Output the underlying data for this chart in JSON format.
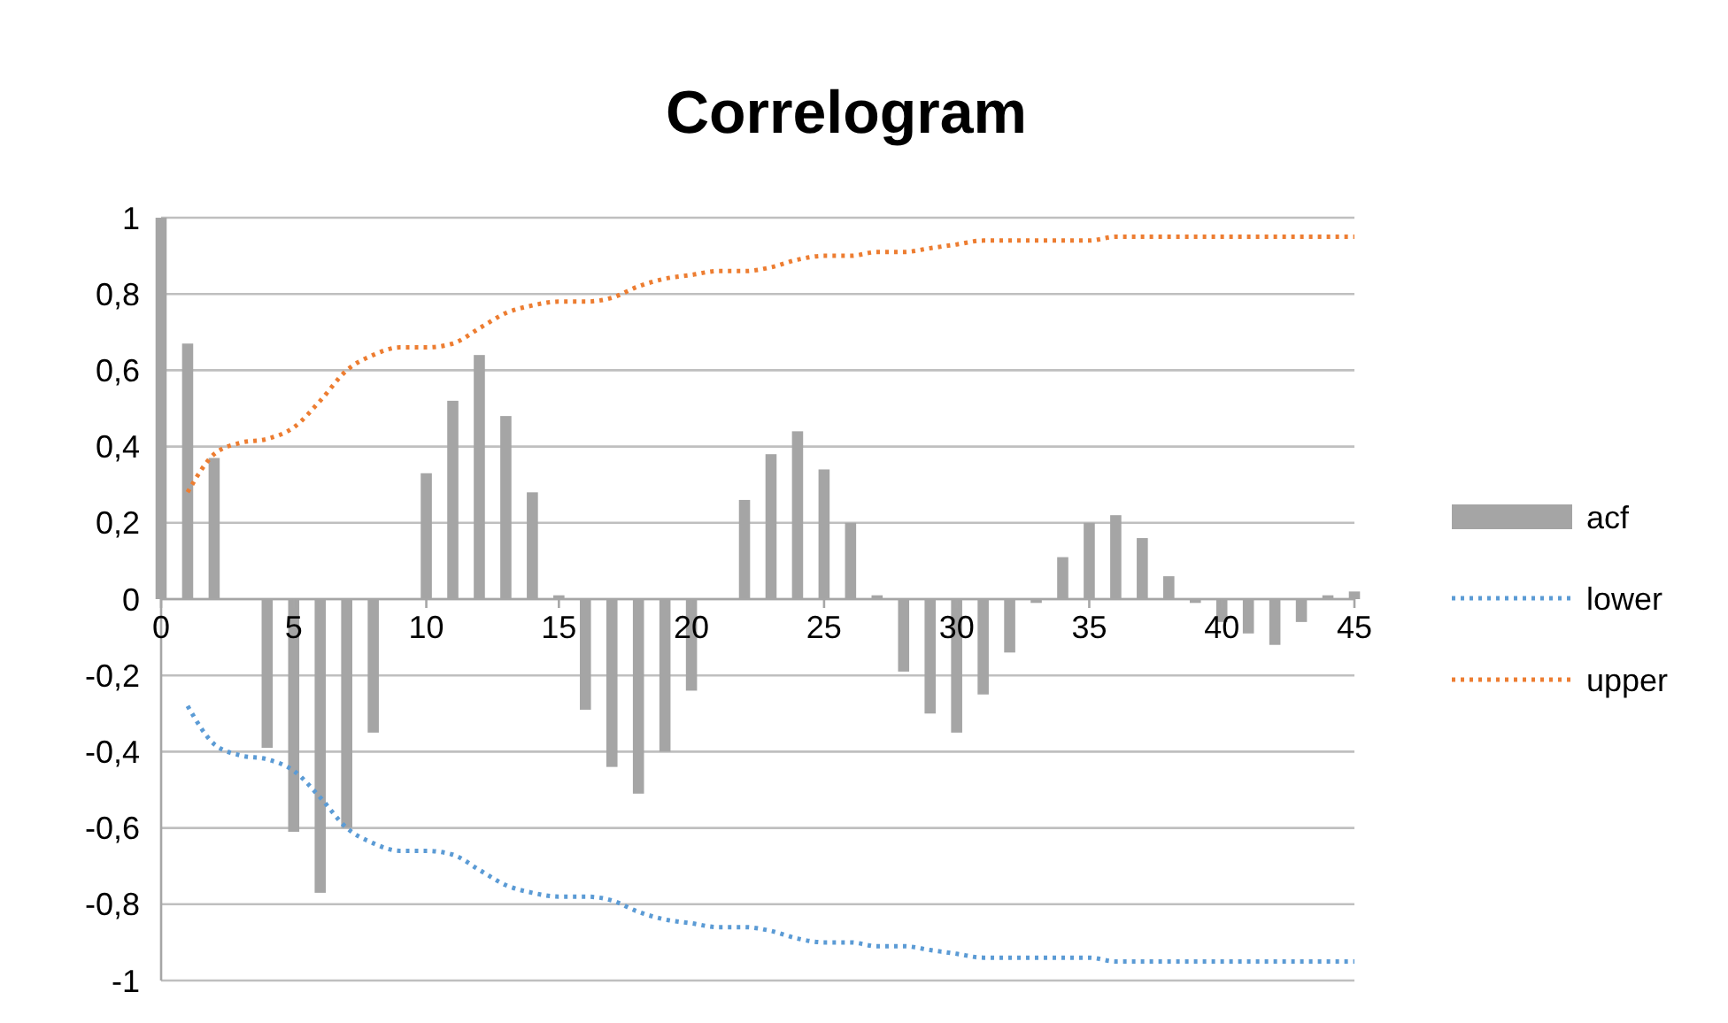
{
  "chart_data": {
    "type": "bar",
    "title": "Correlogram",
    "x": [
      0,
      1,
      2,
      3,
      4,
      5,
      6,
      7,
      8,
      9,
      10,
      11,
      12,
      13,
      14,
      15,
      16,
      17,
      18,
      19,
      20,
      21,
      22,
      23,
      24,
      25,
      26,
      27,
      28,
      29,
      30,
      31,
      32,
      33,
      34,
      35,
      36,
      37,
      38,
      39,
      40,
      41,
      42,
      43,
      44,
      45
    ],
    "series": [
      {
        "name": "acf",
        "color": "#a5a5a5",
        "values": [
          1,
          0.67,
          0.37,
          0,
          -0.39,
          -0.61,
          -0.77,
          -0.6,
          -0.35,
          0,
          0.33,
          0.52,
          0.64,
          0.48,
          0.28,
          0.01,
          -0.29,
          -0.44,
          -0.51,
          -0.4,
          -0.24,
          0,
          0.26,
          0.38,
          0.44,
          0.34,
          0.2,
          0.01,
          -0.19,
          -0.3,
          -0.35,
          -0.25,
          -0.14,
          -0.01,
          0.11,
          0.2,
          0.22,
          0.16,
          0.06,
          -0.01,
          -0.06,
          -0.09,
          -0.12,
          -0.06,
          0.01,
          0.02
        ]
      },
      {
        "name": "lower",
        "type": "line",
        "line_style": "dotted",
        "color": "#5b9bd5",
        "x": [
          1,
          2,
          3,
          4,
          5,
          6,
          7,
          8,
          9,
          10,
          11,
          12,
          13,
          14,
          15,
          16,
          17,
          18,
          19,
          20,
          21,
          22,
          23,
          24,
          25,
          26,
          27,
          28,
          29,
          30,
          31,
          32,
          33,
          34,
          35,
          36,
          37,
          38,
          39,
          40,
          41,
          42,
          43,
          44,
          45
        ],
        "values": [
          -0.28,
          -0.38,
          -0.41,
          -0.42,
          -0.45,
          -0.52,
          -0.6,
          -0.64,
          -0.66,
          -0.66,
          -0.67,
          -0.71,
          -0.75,
          -0.77,
          -0.78,
          -0.78,
          -0.79,
          -0.82,
          -0.84,
          -0.85,
          -0.86,
          -0.86,
          -0.87,
          -0.89,
          -0.9,
          -0.9,
          -0.91,
          -0.91,
          -0.92,
          -0.93,
          -0.94,
          -0.94,
          -0.94,
          -0.94,
          -0.94,
          -0.95,
          -0.95,
          -0.95,
          -0.95,
          -0.95,
          -0.95,
          -0.95,
          -0.95,
          -0.95,
          -0.95
        ]
      },
      {
        "name": "upper",
        "type": "line",
        "line_style": "dotted",
        "color": "#ed7d31",
        "x": [
          1,
          2,
          3,
          4,
          5,
          6,
          7,
          8,
          9,
          10,
          11,
          12,
          13,
          14,
          15,
          16,
          17,
          18,
          19,
          20,
          21,
          22,
          23,
          24,
          25,
          26,
          27,
          28,
          29,
          30,
          31,
          32,
          33,
          34,
          35,
          36,
          37,
          38,
          39,
          40,
          41,
          42,
          43,
          44,
          45
        ],
        "values": [
          0.28,
          0.38,
          0.41,
          0.42,
          0.45,
          0.52,
          0.6,
          0.64,
          0.66,
          0.66,
          0.67,
          0.71,
          0.75,
          0.77,
          0.78,
          0.78,
          0.79,
          0.82,
          0.84,
          0.85,
          0.86,
          0.86,
          0.87,
          0.89,
          0.9,
          0.9,
          0.91,
          0.91,
          0.92,
          0.93,
          0.94,
          0.94,
          0.94,
          0.94,
          0.94,
          0.95,
          0.95,
          0.95,
          0.95,
          0.95,
          0.95,
          0.95,
          0.95,
          0.95,
          0.95
        ]
      }
    ],
    "xlim": [
      0,
      45
    ],
    "xticks": [
      0,
      5,
      10,
      15,
      20,
      25,
      30,
      35,
      40,
      45
    ],
    "ylim": [
      -1,
      1
    ],
    "yticks": [
      {
        "value": -1,
        "label": "-1"
      },
      {
        "value": -0.8,
        "label": "-0,8"
      },
      {
        "value": -0.6,
        "label": "-0,6"
      },
      {
        "value": -0.4,
        "label": "-0,4"
      },
      {
        "value": -0.2,
        "label": "-0,2"
      },
      {
        "value": 0,
        "label": "0"
      },
      {
        "value": 0.2,
        "label": "0,2"
      },
      {
        "value": 0.4,
        "label": "0,4"
      },
      {
        "value": 0.6,
        "label": "0,6"
      },
      {
        "value": 0.8,
        "label": "0,8"
      },
      {
        "value": 1,
        "label": "1"
      }
    ],
    "grid": "y",
    "legend": "right",
    "marker": "none"
  }
}
